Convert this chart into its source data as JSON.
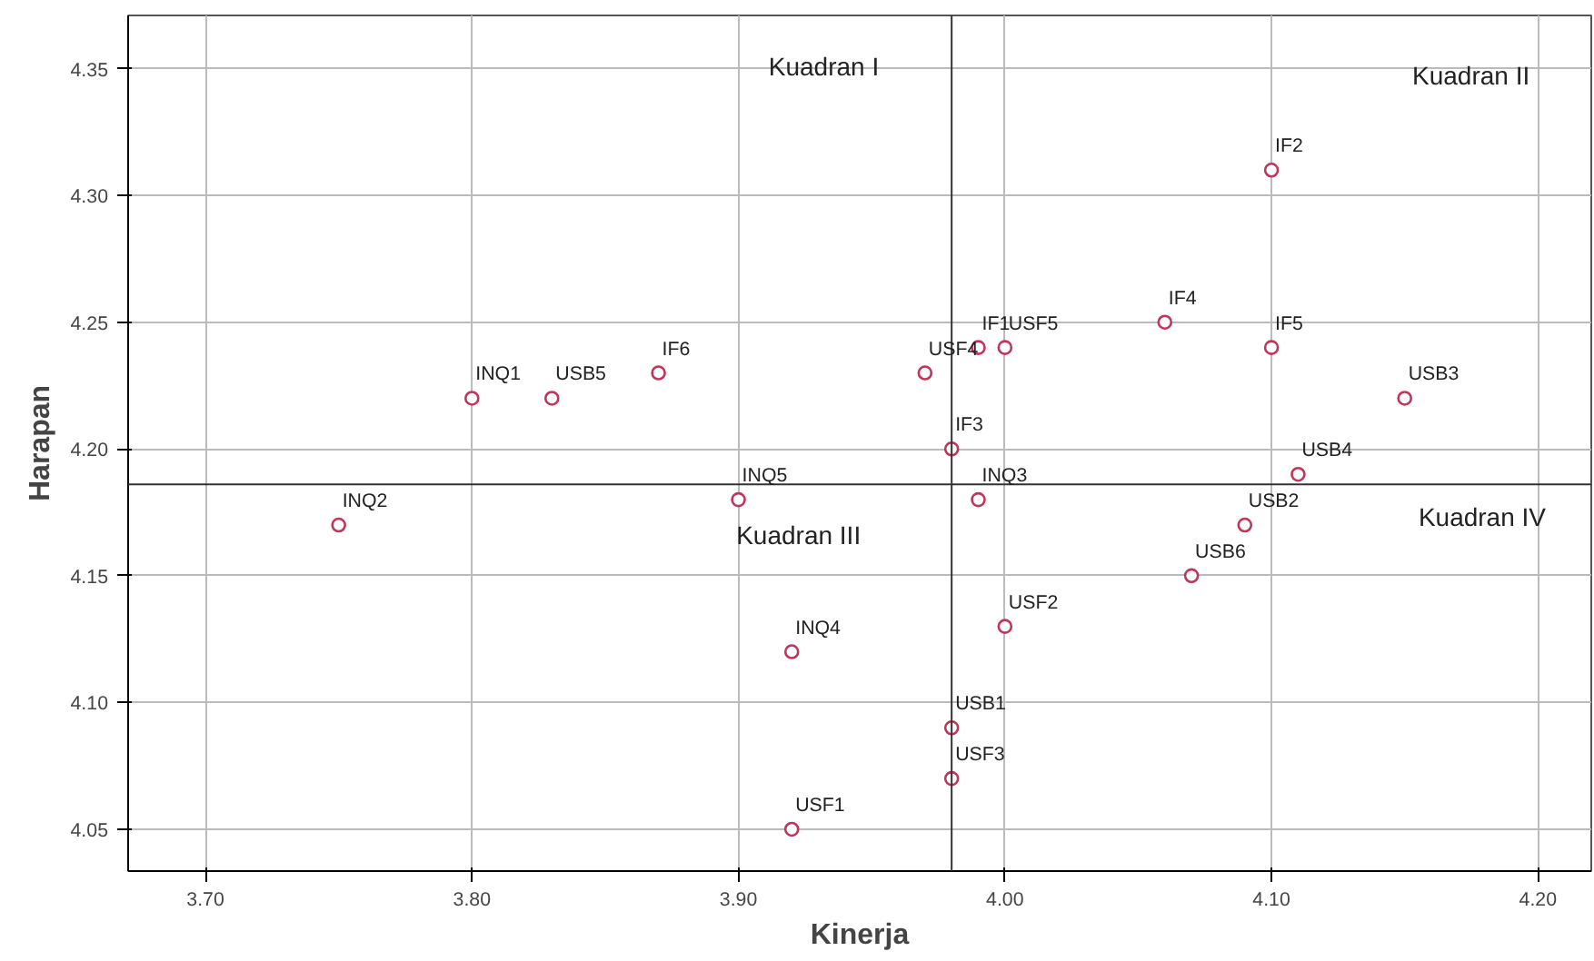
{
  "chart_data": {
    "type": "scatter",
    "xlabel": "Kinerja",
    "ylabel": "Harapan",
    "x": [
      4.1,
      4.06,
      4.1,
      4.15,
      4.0,
      3.99,
      3.97,
      3.87,
      3.83,
      3.8,
      3.98,
      4.11,
      3.9,
      3.99,
      3.75,
      4.09,
      4.07,
      4.0,
      3.92,
      3.98,
      3.98,
      3.92
    ],
    "series": [
      {
        "color": "#c0365a",
        "values": [
          4.31,
          4.25,
          4.24,
          4.22,
          4.24,
          4.24,
          4.23,
          4.23,
          4.22,
          4.22,
          4.2,
          4.19,
          4.18,
          4.18,
          4.17,
          4.17,
          4.15,
          4.13,
          4.12,
          4.09,
          4.07,
          4.05
        ]
      }
    ],
    "marker": "circle",
    "grid": true,
    "xlim": [
      3.671,
      4.22
    ],
    "ylim": [
      4.0335,
      4.371
    ],
    "xticks": [
      {
        "value": 3.7,
        "label": "3.70"
      },
      {
        "value": 3.8,
        "label": "3.80"
      },
      {
        "value": 3.9,
        "label": "3.90"
      },
      {
        "value": 4.0,
        "label": "4.00"
      },
      {
        "value": 4.1,
        "label": "4.10"
      },
      {
        "value": 4.2,
        "label": "4.20"
      }
    ],
    "yticks": [
      {
        "value": 4.05,
        "label": "4.05"
      },
      {
        "value": 4.1,
        "label": "4.10"
      },
      {
        "value": 4.15,
        "label": "4.15"
      },
      {
        "value": 4.2,
        "label": "4.20"
      },
      {
        "value": 4.25,
        "label": "4.25"
      },
      {
        "value": 4.3,
        "label": "4.30"
      },
      {
        "value": 4.35,
        "label": "4.35"
      }
    ],
    "ref_lines": [
      {
        "axis": "x",
        "value": 3.98,
        "color": "#333333"
      },
      {
        "axis": "y",
        "value": 4.186,
        "color": "#333333"
      }
    ],
    "annotations": [
      {
        "text": "IF2",
        "x": 4.1,
        "y": 4.31
      },
      {
        "text": "IF4",
        "x": 4.06,
        "y": 4.25
      },
      {
        "text": "IF5",
        "x": 4.1,
        "y": 4.24
      },
      {
        "text": "USB3",
        "x": 4.15,
        "y": 4.22
      },
      {
        "text": "USF5",
        "x": 4.0,
        "y": 4.24
      },
      {
        "text": "IF1",
        "x": 3.99,
        "y": 4.24
      },
      {
        "text": "USF4",
        "x": 3.97,
        "y": 4.23
      },
      {
        "text": "IF6",
        "x": 3.87,
        "y": 4.23
      },
      {
        "text": "USB5",
        "x": 3.83,
        "y": 4.22
      },
      {
        "text": "INQ1",
        "x": 3.8,
        "y": 4.22
      },
      {
        "text": "IF3",
        "x": 3.98,
        "y": 4.2
      },
      {
        "text": "USB4",
        "x": 4.11,
        "y": 4.19
      },
      {
        "text": "INQ5",
        "x": 3.9,
        "y": 4.18
      },
      {
        "text": "INQ3",
        "x": 3.99,
        "y": 4.18
      },
      {
        "text": "INQ2",
        "x": 3.75,
        "y": 4.17
      },
      {
        "text": "USB2",
        "x": 4.09,
        "y": 4.17
      },
      {
        "text": "USB6",
        "x": 4.07,
        "y": 4.15
      },
      {
        "text": "USF2",
        "x": 4.0,
        "y": 4.13
      },
      {
        "text": "INQ4",
        "x": 3.92,
        "y": 4.12
      },
      {
        "text": "USB1",
        "x": 3.98,
        "y": 4.09
      },
      {
        "text": "USF3",
        "x": 3.98,
        "y": 4.07
      },
      {
        "text": "USF1",
        "x": 3.92,
        "y": 4.05
      },
      "Kuadran I",
      "Kuadran  II",
      "Kuadran III",
      "Kuadran IV"
    ]
  }
}
